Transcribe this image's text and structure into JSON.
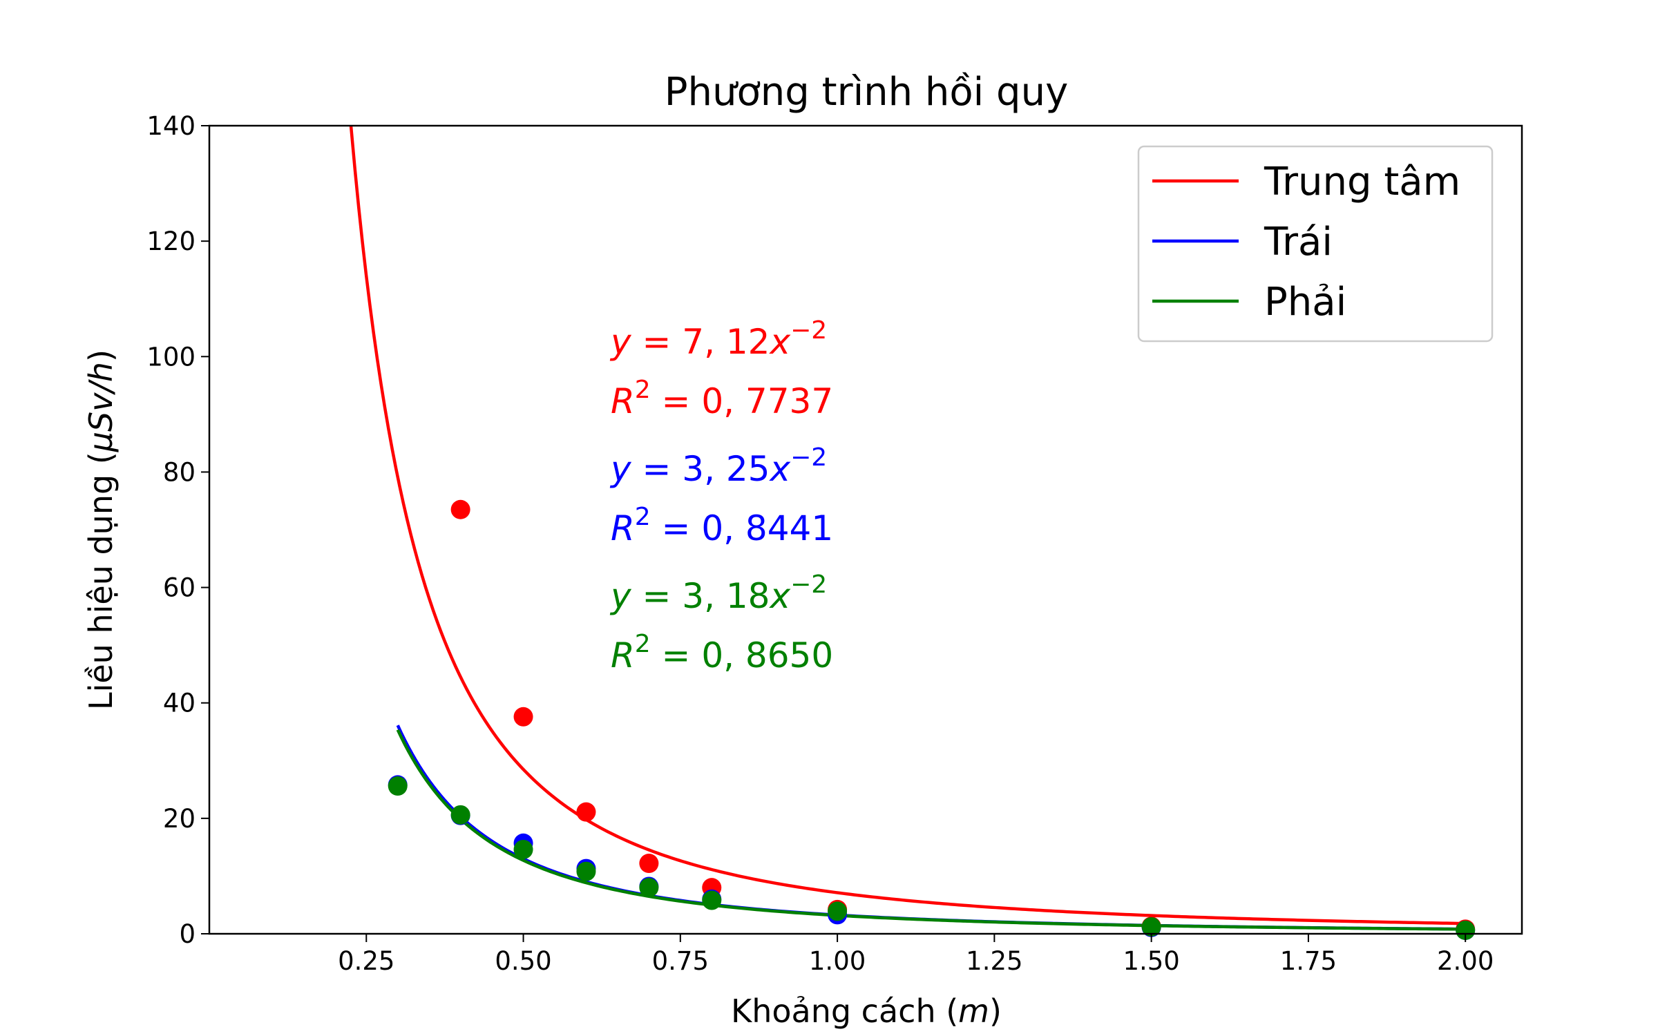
{
  "chart_data": {
    "type": "scatter",
    "title": "Phương trình hồi quy",
    "xlabel": "Khoảng cách (m)",
    "xlabel_parts": {
      "prefix": "Khoảng cách (",
      "unit": "m",
      "suffix": ")"
    },
    "ylabel": "Liều hiệu dụng (µSv/h)",
    "ylabel_parts": {
      "prefix": "Liều hiệu dụng (",
      "unit": "µSv/h",
      "suffix": ")"
    },
    "xlim": [
      0.0,
      2.09
    ],
    "ylim": [
      0,
      140
    ],
    "xticks": [
      0.25,
      0.5,
      0.75,
      1.0,
      1.25,
      1.5,
      1.75,
      2.0
    ],
    "xtick_labels": [
      "0.25",
      "0.50",
      "0.75",
      "1.00",
      "1.25",
      "1.50",
      "1.75",
      "2.00"
    ],
    "yticks": [
      0,
      20,
      40,
      60,
      80,
      100,
      120,
      140
    ],
    "ytick_labels": [
      "0",
      "20",
      "40",
      "60",
      "80",
      "100",
      "120",
      "140"
    ],
    "grid": false,
    "legend_position": "top-right",
    "series": [
      {
        "name": "Trung tâm",
        "color": "#ff0000",
        "x": [
          0.4,
          0.5,
          0.6,
          0.7,
          0.8,
          1.0,
          1.5,
          2.0
        ],
        "y": [
          73.5,
          37.6,
          21.1,
          12.2,
          8.0,
          4.2,
          1.3,
          0.8
        ],
        "fit": {
          "a": 7.12,
          "b": -2,
          "x_range": [
            0.22,
            2.0
          ]
        },
        "eq_a": "7, 12",
        "eq_exp": "−2",
        "r2": "0, 7737"
      },
      {
        "name": "Trái",
        "color": "#0000ff",
        "x": [
          0.3,
          0.4,
          0.5,
          0.6,
          0.7,
          0.8,
          1.0,
          1.5,
          2.0
        ],
        "y": [
          25.8,
          20.5,
          15.7,
          11.3,
          8.2,
          6.0,
          3.3,
          1.1,
          0.6
        ],
        "fit": {
          "a": 3.25,
          "b": -2,
          "x_range": [
            0.3,
            2.0
          ]
        },
        "eq_a": "3, 25",
        "eq_exp": "−2",
        "r2": "0, 8441"
      },
      {
        "name": "Phải",
        "color": "#008000",
        "x": [
          0.3,
          0.4,
          0.5,
          0.6,
          0.7,
          0.8,
          1.0,
          1.5,
          2.0
        ],
        "y": [
          25.6,
          20.6,
          14.6,
          10.8,
          8.0,
          5.8,
          3.9,
          1.2,
          0.6
        ],
        "fit": {
          "a": 3.18,
          "b": -2,
          "x_range": [
            0.3,
            2.0
          ]
        },
        "eq_a": "3, 18",
        "eq_exp": "−2",
        "r2": "0, 8650"
      }
    ]
  }
}
